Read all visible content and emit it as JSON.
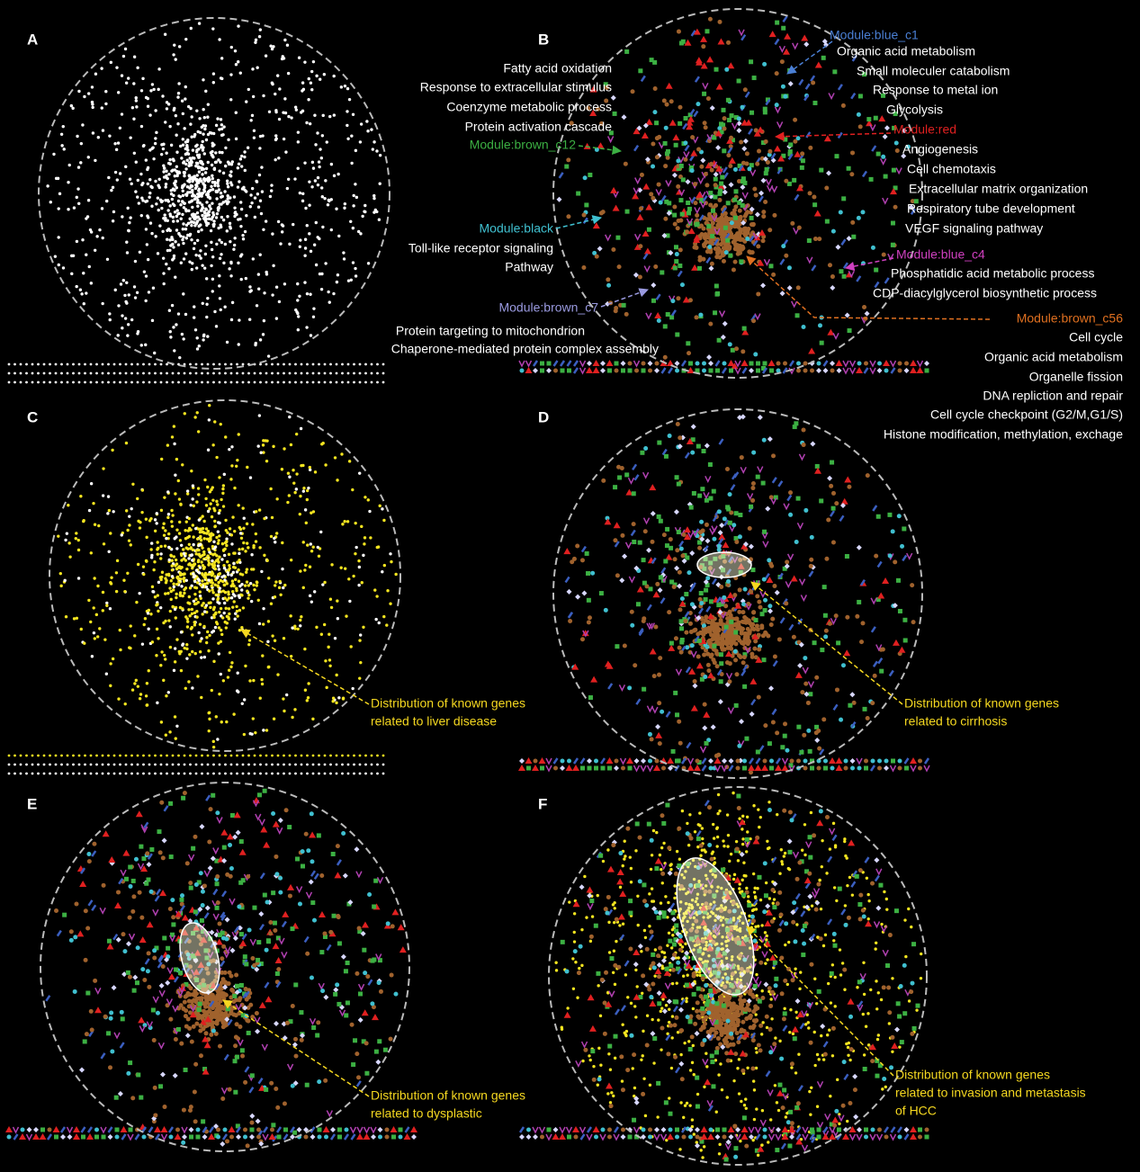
{
  "panels": [
    "A",
    "B",
    "C",
    "D",
    "E",
    "F"
  ],
  "modules": [
    {
      "name": "Module:blue_c1",
      "terms": [
        "Organic acid metabolism",
        "Small moleculer catabolism",
        "Response to metal ion",
        "Glycolysis"
      ]
    },
    {
      "name": "Module:brown_c12",
      "terms": [
        "Fatty acid oxidation",
        "Response to extracellular stimulus",
        "Coenzyme metabolic process",
        "Protein activation cascade"
      ]
    },
    {
      "name": "Module:black",
      "terms": [
        "Toll-like receptor signaling",
        "Pathway"
      ]
    },
    {
      "name": "Module:brown_c7",
      "terms": [
        "Protein targeting to mitochondrion",
        "Chaperone-mediated protein complex assembly"
      ]
    },
    {
      "name": "Module:red",
      "terms": [
        "Angiogenesis",
        "Cell chemotaxis",
        "Extracellular matrix organization",
        "Respiratory tube development",
        "VEGF signaling pathway"
      ]
    },
    {
      "name": "Module:blue_c4",
      "terms": [
        "Phosphatidic acid metabolic process",
        "CDP-diacylglycerol biosynthetic process"
      ]
    },
    {
      "name": "Module:brown_c56",
      "terms": [
        "Cell cycle",
        "Organic acid metabolism",
        "Organelle fission",
        "DNA repliction and repair",
        "Cell cycle checkpoint (G2/M,G1/S)",
        "Histone modification, methylation, exchage"
      ]
    }
  ],
  "annotations": [
    {
      "panel": "C",
      "lines": [
        "Distribution of known genes",
        "related to liver disease"
      ]
    },
    {
      "panel": "D",
      "lines": [
        "Distribution of known genes",
        "related to cirrhosis"
      ]
    },
    {
      "panel": "E",
      "lines": [
        "Distribution of known genes",
        "related to dysplastic"
      ]
    },
    {
      "panel": "F",
      "lines": [
        "Distribution of known genes",
        "related to invasion and metastasis",
        "of HCC"
      ]
    }
  ]
}
